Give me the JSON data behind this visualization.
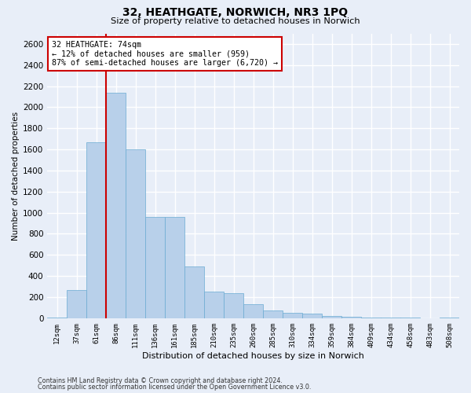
{
  "title1": "32, HEATHGATE, NORWICH, NR3 1PQ",
  "title2": "Size of property relative to detached houses in Norwich",
  "xlabel": "Distribution of detached houses by size in Norwich",
  "ylabel": "Number of detached properties",
  "footnote1": "Contains HM Land Registry data © Crown copyright and database right 2024.",
  "footnote2": "Contains public sector information licensed under the Open Government Licence v3.0.",
  "annotation_line1": "32 HEATHGATE: 74sqm",
  "annotation_line2": "← 12% of detached houses are smaller (959)",
  "annotation_line3": "87% of semi-detached houses are larger (6,720) →",
  "bar_color": "#b8d0ea",
  "bar_edge_color": "#6aabd2",
  "vline_color": "#cc0000",
  "vline_bin_index": 3,
  "ylim": [
    0,
    2700
  ],
  "yticks": [
    0,
    200,
    400,
    600,
    800,
    1000,
    1200,
    1400,
    1600,
    1800,
    2000,
    2200,
    2400,
    2600
  ],
  "bins": [
    "12sqm",
    "37sqm",
    "61sqm",
    "86sqm",
    "111sqm",
    "136sqm",
    "161sqm",
    "185sqm",
    "210sqm",
    "235sqm",
    "260sqm",
    "285sqm",
    "310sqm",
    "334sqm",
    "359sqm",
    "384sqm",
    "409sqm",
    "434sqm",
    "458sqm",
    "483sqm",
    "508sqm"
  ],
  "values": [
    5,
    270,
    1670,
    2140,
    1600,
    960,
    960,
    490,
    250,
    240,
    130,
    75,
    50,
    40,
    20,
    15,
    5,
    5,
    5,
    0,
    5
  ],
  "background_color": "#e8eef8",
  "grid_color": "#ffffff"
}
